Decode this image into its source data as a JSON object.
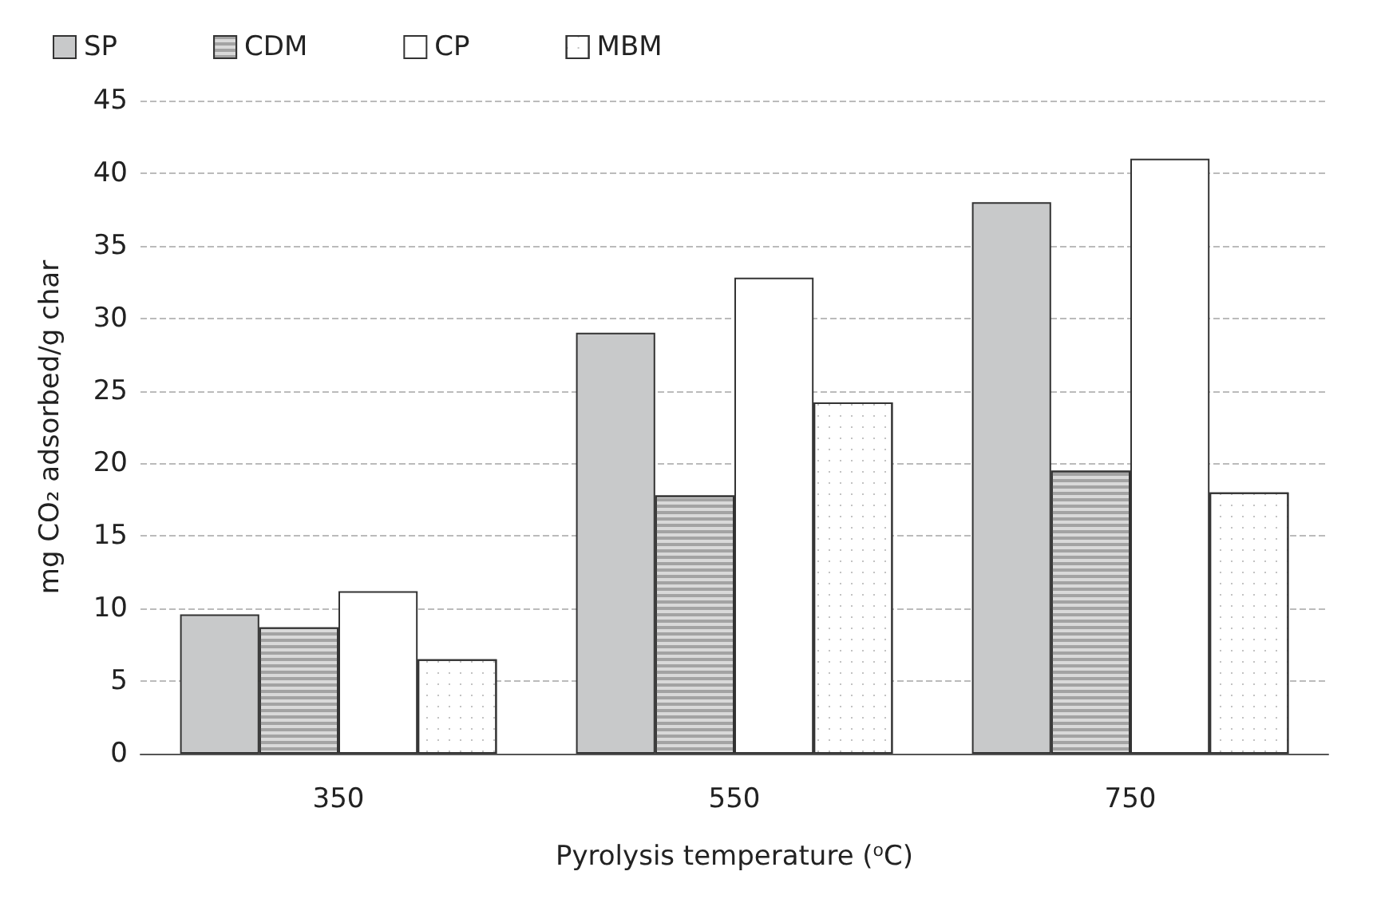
{
  "chart_data": {
    "type": "bar",
    "xlabel": "Pyrolysis temperature ($^{o}$C)",
    "ylabel": "mg CO₂ adsorbed/g char",
    "categories": [
      "350",
      "550",
      "750"
    ],
    "series": [
      {
        "name": "SP",
        "color": "#c8c9ca",
        "values": [
          9.6,
          29.0,
          38.0
        ]
      },
      {
        "name": "CDM",
        "color": "#d9d9d9",
        "values": [
          8.7,
          17.8,
          19.5
        ]
      },
      {
        "name": "CP",
        "color": "#ffffff",
        "values": [
          11.2,
          32.8,
          41.0
        ]
      },
      {
        "name": "MBM",
        "color": "#ffffff",
        "values": [
          6.5,
          24.2,
          18.0
        ]
      }
    ],
    "ylim": [
      0,
      45
    ],
    "yticks": [
      0,
      5,
      10,
      15,
      20,
      25,
      30,
      35,
      40,
      45
    ],
    "grid": "y",
    "legend": "top left"
  }
}
